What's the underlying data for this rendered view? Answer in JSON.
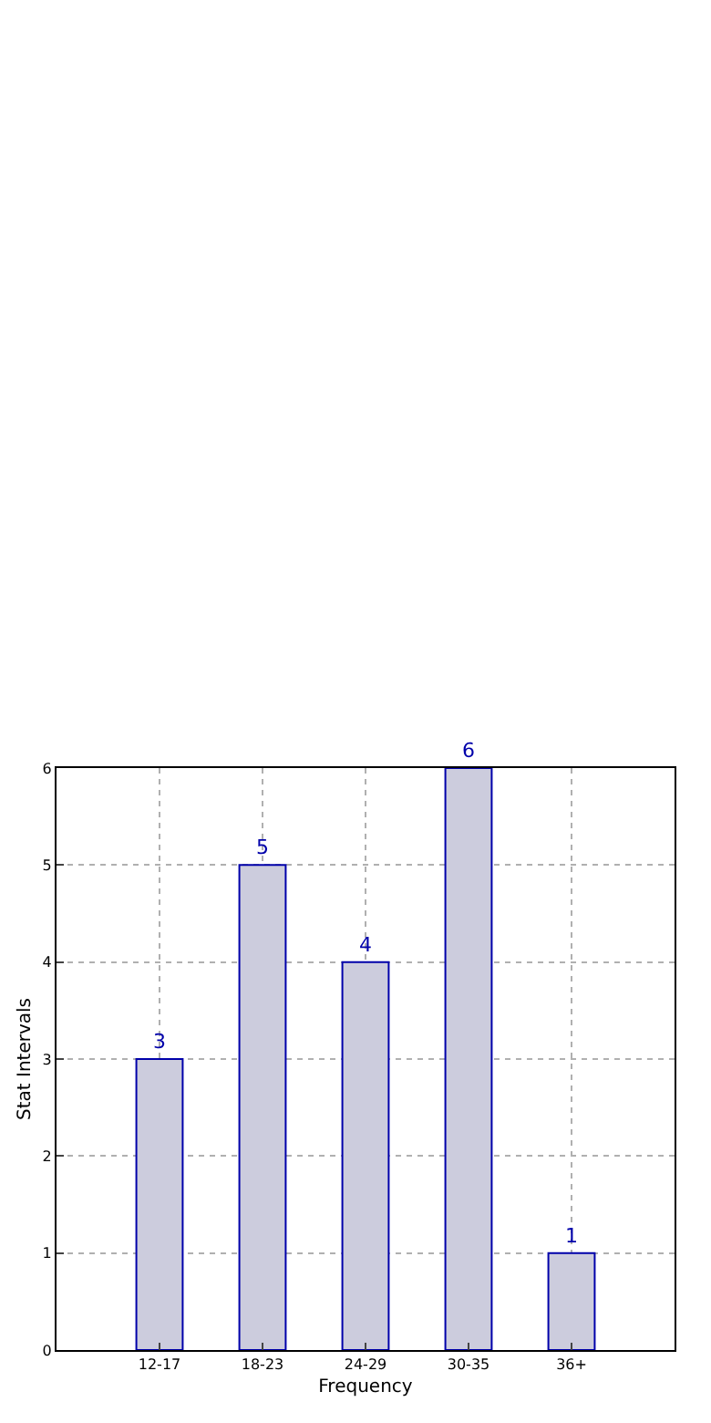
{
  "chart_data": {
    "type": "bar",
    "xlabel": "Frequency",
    "ylabel": "Stat Intervals",
    "categories": [
      "12-17",
      "18-23",
      "24-29",
      "30-35",
      "36+"
    ],
    "values": [
      3,
      5,
      4,
      6,
      1
    ],
    "color": "#ccccdd",
    "ylim": [
      0,
      6
    ],
    "yticks": [
      0,
      1,
      2,
      3,
      4,
      5,
      6
    ],
    "grid": true,
    "data_labels": true
  }
}
